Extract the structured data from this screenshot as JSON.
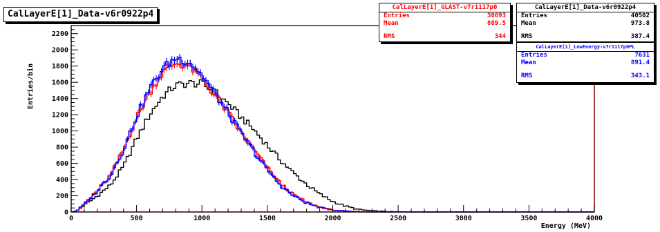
{
  "chart_data": {
    "type": "line",
    "title": "CalLayerE[1]_Data-v6r0922p4",
    "xlabel": "Energy (MeV)",
    "ylabel": "Entries/bin",
    "xlim": [
      0,
      4000
    ],
    "ylim": [
      0,
      2300
    ],
    "xticks": [
      0,
      500,
      1000,
      1500,
      2000,
      2500,
      3000,
      3500,
      4000
    ],
    "yticks": [
      0,
      200,
      400,
      600,
      800,
      1000,
      1200,
      1400,
      1600,
      1800,
      2000,
      2200
    ],
    "bin_width": 20,
    "colors": {
      "data": "#000000",
      "glast": "#ff0000",
      "lowenergy": "#0000ff",
      "frame": "#8b0000"
    },
    "anchors": {
      "data": [
        [
          0,
          0
        ],
        [
          40,
          10
        ],
        [
          100,
          80
        ],
        [
          200,
          200
        ],
        [
          300,
          330
        ],
        [
          400,
          560
        ],
        [
          500,
          900
        ],
        [
          600,
          1200
        ],
        [
          700,
          1430
        ],
        [
          800,
          1560
        ],
        [
          900,
          1590
        ],
        [
          1000,
          1580
        ],
        [
          1100,
          1480
        ],
        [
          1200,
          1340
        ],
        [
          1300,
          1170
        ],
        [
          1400,
          1010
        ],
        [
          1500,
          820
        ],
        [
          1600,
          640
        ],
        [
          1700,
          480
        ],
        [
          1800,
          340
        ],
        [
          1900,
          220
        ],
        [
          2000,
          130
        ],
        [
          2100,
          70
        ],
        [
          2200,
          30
        ],
        [
          2300,
          14
        ],
        [
          2400,
          6
        ],
        [
          2500,
          2
        ],
        [
          2600,
          0
        ],
        [
          4000,
          0
        ]
      ],
      "glast": [
        [
          0,
          0
        ],
        [
          40,
          10
        ],
        [
          100,
          90
        ],
        [
          200,
          260
        ],
        [
          300,
          450
        ],
        [
          400,
          770
        ],
        [
          500,
          1160
        ],
        [
          600,
          1480
        ],
        [
          700,
          1720
        ],
        [
          800,
          1840
        ],
        [
          900,
          1800
        ],
        [
          1000,
          1650
        ],
        [
          1100,
          1440
        ],
        [
          1200,
          1220
        ],
        [
          1300,
          970
        ],
        [
          1400,
          760
        ],
        [
          1500,
          540
        ],
        [
          1600,
          350
        ],
        [
          1700,
          210
        ],
        [
          1800,
          120
        ],
        [
          1900,
          60
        ],
        [
          2000,
          25
        ],
        [
          2100,
          10
        ],
        [
          2200,
          3
        ],
        [
          2300,
          0
        ],
        [
          4000,
          0
        ]
      ],
      "lowenergy": [
        [
          0,
          0
        ],
        [
          40,
          12
        ],
        [
          100,
          95
        ],
        [
          200,
          260
        ],
        [
          300,
          450
        ],
        [
          400,
          770
        ],
        [
          500,
          1180
        ],
        [
          600,
          1520
        ],
        [
          700,
          1770
        ],
        [
          800,
          1900
        ],
        [
          900,
          1860
        ],
        [
          1000,
          1690
        ],
        [
          1100,
          1460
        ],
        [
          1200,
          1220
        ],
        [
          1300,
          970
        ],
        [
          1400,
          740
        ],
        [
          1500,
          520
        ],
        [
          1600,
          330
        ],
        [
          1700,
          200
        ],
        [
          1800,
          110
        ],
        [
          1900,
          55
        ],
        [
          2000,
          25
        ],
        [
          2100,
          10
        ],
        [
          2200,
          3
        ],
        [
          2300,
          0
        ],
        [
          4000,
          0
        ]
      ]
    },
    "series": [
      {
        "key": "data",
        "name": "CalLayerE[1]_Data-v6r0922p4",
        "entries": "40502",
        "mean": "973.8",
        "rms": "387.4"
      },
      {
        "key": "glast",
        "name": "CalLayerE[1]_GLAST-v7r1117p0",
        "entries": "30693",
        "mean": "889.5",
        "rms": "344"
      },
      {
        "key": "lowenergy",
        "name": "CalLayerE[1]_LowEnergy-v7r1117p0PL",
        "entries": "7631",
        "mean": "891.4",
        "rms": "343.1"
      }
    ]
  },
  "stats_labels": {
    "entries": "Entries",
    "mean": "Mean",
    "rms": "RMS"
  }
}
